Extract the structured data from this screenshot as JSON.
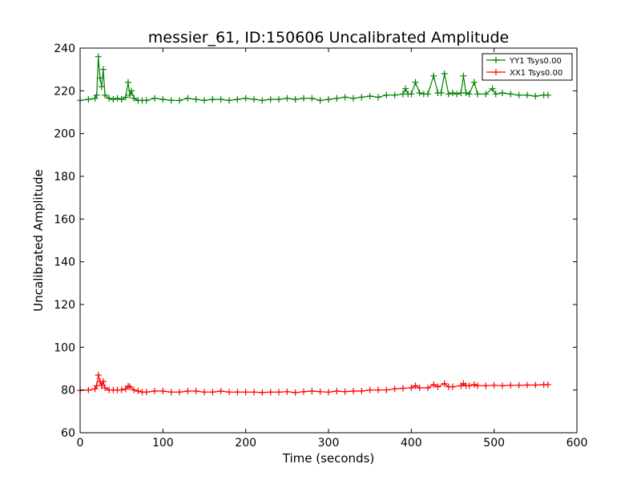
{
  "chart_data": {
    "type": "line",
    "title": "messier_61, ID:150606 Uncalibrated Amplitude",
    "xlabel": "Time (seconds)",
    "ylabel": "Uncalibrated Amplitude",
    "xlim": [
      0,
      600
    ],
    "ylim": [
      60,
      240
    ],
    "x_ticks": [
      0,
      100,
      200,
      300,
      400,
      500,
      600
    ],
    "y_ticks": [
      60,
      80,
      100,
      120,
      140,
      160,
      180,
      200,
      220,
      240
    ],
    "grid": false,
    "legend_position": "top-right",
    "marker": "+",
    "series": [
      {
        "name": "YY1 Tsys0.00",
        "color": "#008000",
        "x": [
          0,
          10,
          18,
          20,
          22,
          24,
          26,
          28,
          30,
          35,
          40,
          45,
          50,
          55,
          58,
          60,
          62,
          65,
          70,
          75,
          80,
          90,
          100,
          110,
          120,
          130,
          140,
          150,
          160,
          170,
          180,
          190,
          200,
          210,
          220,
          230,
          240,
          250,
          260,
          270,
          280,
          290,
          300,
          310,
          320,
          330,
          340,
          350,
          360,
          370,
          380,
          390,
          393,
          396,
          400,
          405,
          410,
          415,
          420,
          427,
          432,
          436,
          440,
          445,
          450,
          455,
          460,
          463,
          466,
          470,
          476,
          480,
          490,
          498,
          502,
          510,
          520,
          530,
          540,
          550,
          560,
          565
        ],
        "values": [
          215.5,
          216,
          216.5,
          218,
          236,
          226,
          222,
          230,
          218,
          216.5,
          216,
          216.5,
          216,
          217,
          224,
          218,
          220,
          216.5,
          215.5,
          215.5,
          215.5,
          216.5,
          216,
          215.5,
          215.5,
          216.5,
          216,
          215.5,
          216,
          216,
          215.5,
          216,
          216.5,
          216,
          215.5,
          216,
          216,
          216.5,
          216,
          216.5,
          216.5,
          215.5,
          216,
          216.5,
          217,
          216.5,
          217,
          217.5,
          217,
          218,
          218,
          218.5,
          221,
          218.5,
          218.5,
          224,
          219,
          218.5,
          218.5,
          227,
          219,
          219,
          228,
          218.5,
          219,
          218.5,
          219,
          227,
          219,
          218.5,
          224,
          218.5,
          218.5,
          221,
          218.5,
          219,
          218.5,
          218,
          218,
          217.5,
          218,
          218
        ]
      },
      {
        "name": "XX1 Tsys0.00",
        "color": "#ff0000",
        "x": [
          0,
          10,
          18,
          20,
          22,
          24,
          26,
          28,
          30,
          35,
          40,
          45,
          50,
          55,
          58,
          60,
          65,
          70,
          75,
          80,
          90,
          100,
          110,
          120,
          130,
          140,
          150,
          160,
          170,
          180,
          190,
          200,
          210,
          220,
          230,
          240,
          250,
          260,
          270,
          280,
          290,
          300,
          310,
          320,
          330,
          340,
          350,
          360,
          370,
          380,
          390,
          400,
          405,
          410,
          420,
          427,
          432,
          440,
          445,
          450,
          460,
          463,
          466,
          470,
          476,
          480,
          490,
          500,
          510,
          520,
          530,
          540,
          550,
          560,
          565
        ],
        "values": [
          79.8,
          80,
          80.5,
          82,
          87,
          84,
          82,
          84,
          81,
          80,
          80,
          80,
          80,
          80.5,
          81.8,
          81.5,
          80,
          79.5,
          79,
          79,
          79.5,
          79.5,
          79,
          79,
          79.5,
          79.5,
          79,
          79,
          79.5,
          79,
          79,
          79,
          79,
          78.8,
          79,
          79,
          79.2,
          78.8,
          79.2,
          79.5,
          79.2,
          79,
          79.5,
          79.2,
          79.5,
          79.5,
          80,
          80,
          80,
          80.5,
          80.8,
          81,
          82,
          81,
          81,
          82.5,
          81.5,
          83,
          81.5,
          81.5,
          82,
          83,
          82,
          82,
          82.5,
          82,
          82,
          82.2,
          82,
          82.2,
          82.2,
          82.3,
          82.3,
          82.5,
          82.5
        ]
      }
    ]
  }
}
